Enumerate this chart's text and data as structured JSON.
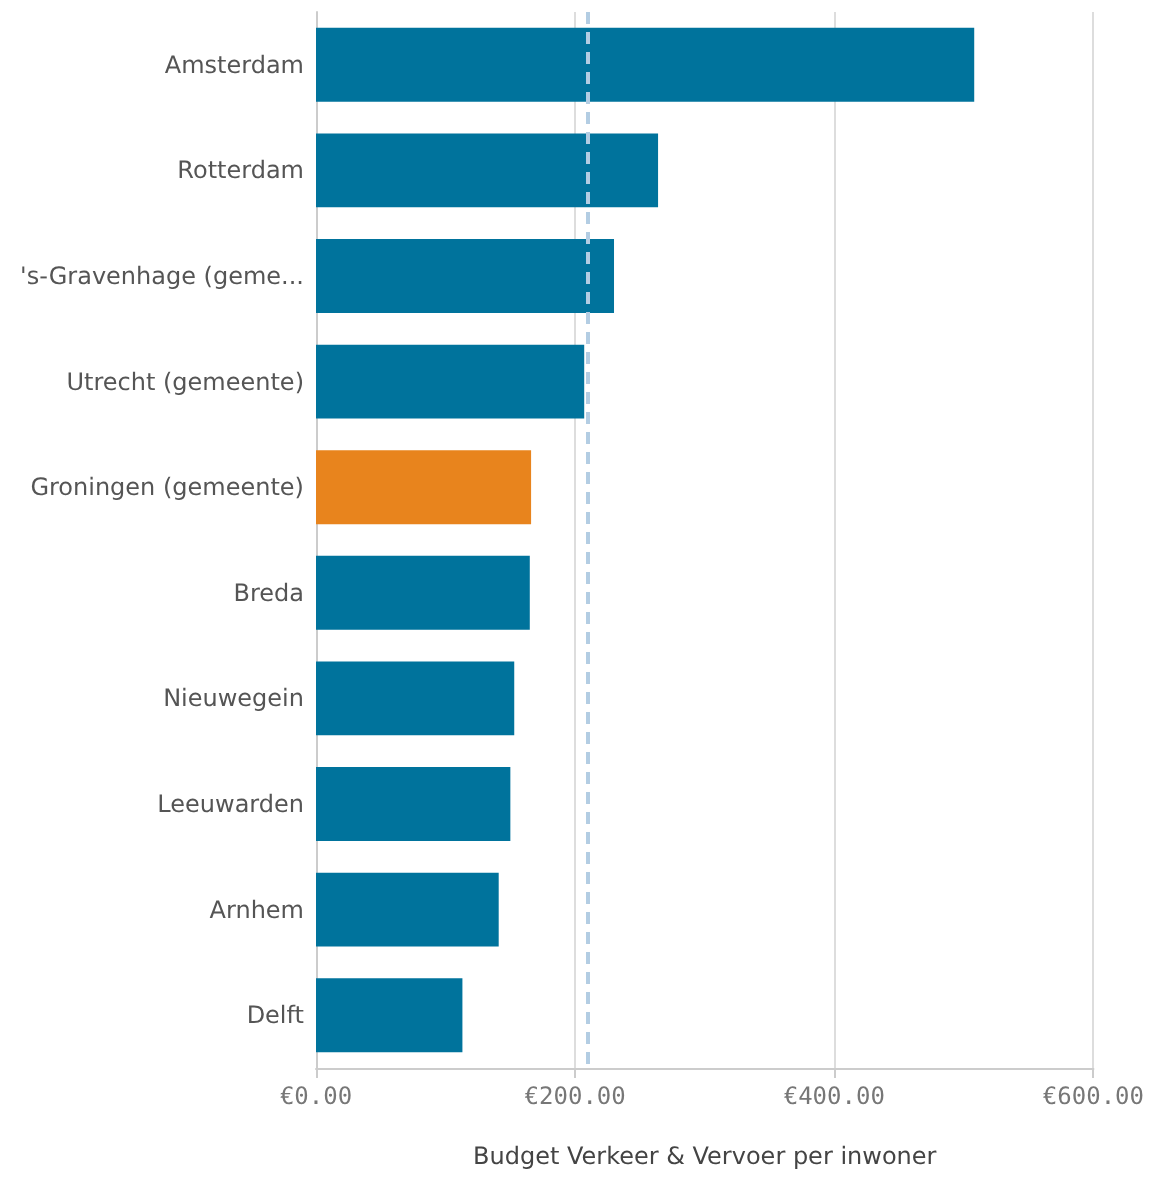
{
  "chart_data": {
    "type": "bar",
    "orientation": "horizontal",
    "xlabel": "Budget Verkeer & Vervoer per inwoner",
    "categories": [
      "Amsterdam",
      "Rotterdam",
      "'s-Gravenhage (geme...",
      "Utrecht (gemeente)",
      "Groningen (gemeente)",
      "Breda",
      "Nieuwegein",
      "Leeuwarden",
      "Arnhem",
      "Delft"
    ],
    "values": [
      508,
      264,
      230,
      207,
      166,
      165,
      153,
      150,
      141,
      113
    ],
    "colors": [
      "#00739c",
      "#00739c",
      "#00739c",
      "#00739c",
      "#e8841d",
      "#00739c",
      "#00739c",
      "#00739c",
      "#00739c",
      "#00739c"
    ],
    "xlim": [
      0,
      600
    ],
    "xticks": [
      {
        "value": 0,
        "label": "€0.00"
      },
      {
        "value": 200,
        "label": "€200.00"
      },
      {
        "value": 400,
        "label": "€400.00"
      },
      {
        "value": 600,
        "label": "€600.00"
      }
    ],
    "ref_lines": [
      {
        "axis": "x",
        "value": 209,
        "color": "#b3cde3",
        "line_style": "dashed"
      }
    ],
    "grid": "x"
  }
}
